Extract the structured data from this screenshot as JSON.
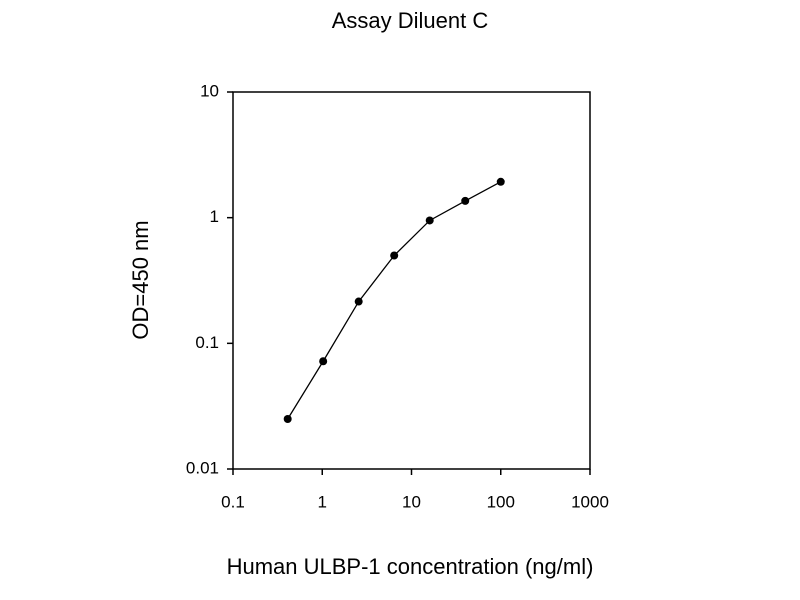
{
  "chart_data": {
    "type": "line",
    "title": "Assay Diluent C",
    "x_label": "Human ULBP-1 concentration (ng/ml)",
    "y_label": "OD=450 nm",
    "x": [
      0.41,
      1.024,
      2.56,
      6.4,
      16,
      40,
      100
    ],
    "series": [
      {
        "color": "#000000",
        "values": [
          0.025,
          0.072,
          0.215,
          0.5,
          0.95,
          1.36,
          1.93
        ]
      }
    ],
    "xlog": true,
    "ylog": true,
    "xlim": [
      0.1,
      1000
    ],
    "ylim": [
      0.01,
      10
    ],
    "xticks": [
      0.1,
      1,
      10,
      100,
      1000
    ],
    "yticks": [
      0.01,
      0.1,
      1,
      10
    ],
    "grid": false
  }
}
